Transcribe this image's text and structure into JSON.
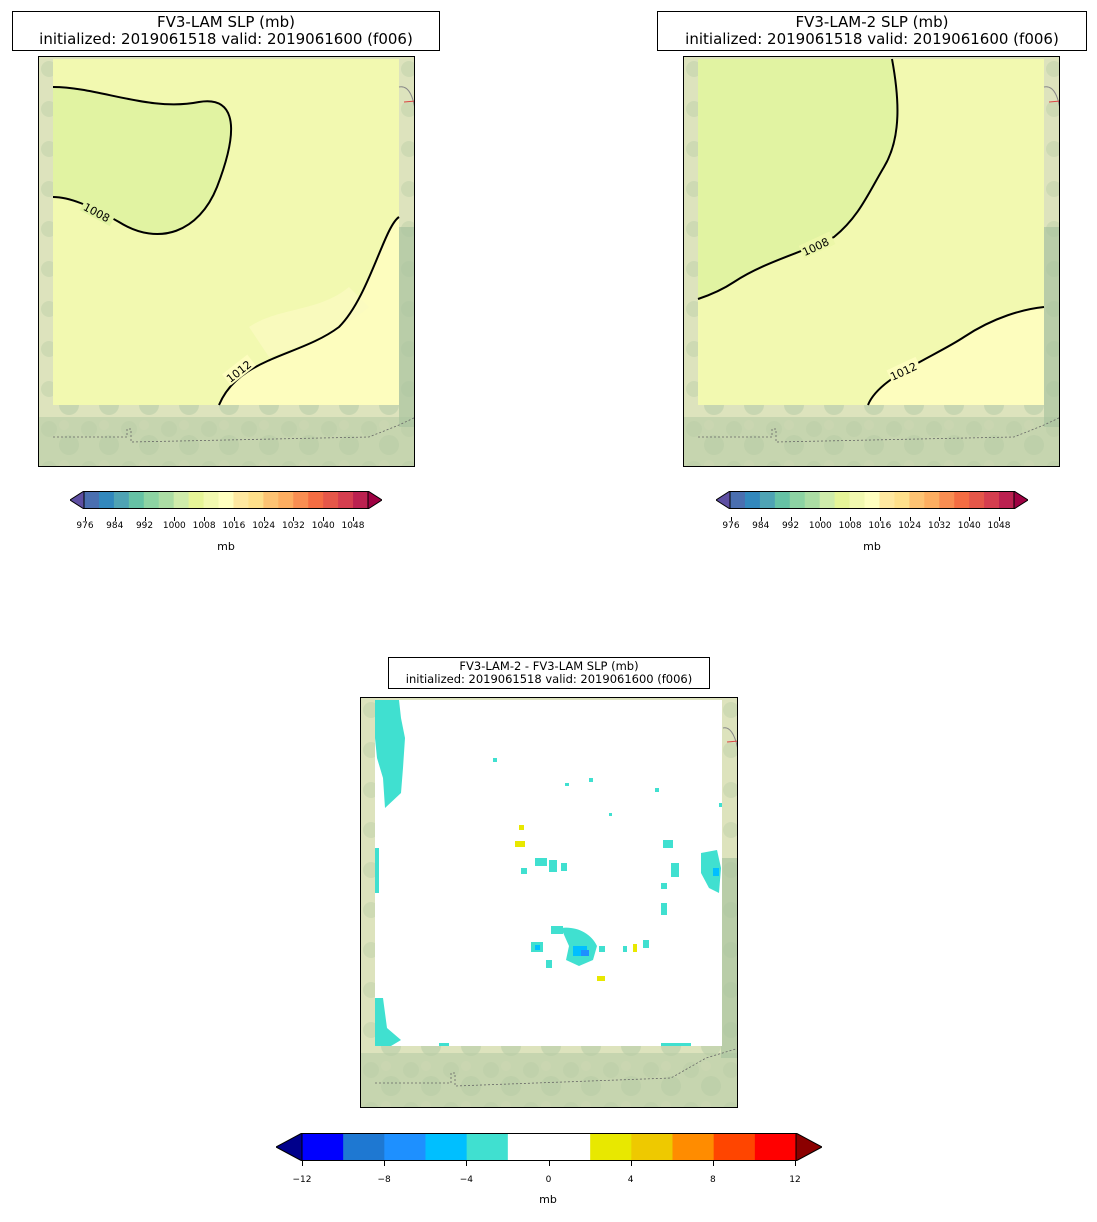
{
  "panels": {
    "top_left": {
      "title_line1": "FV3-LAM SLP (mb)",
      "title_line2": " initialized: 2019061518 valid: 2019061600 (f006)",
      "contour_labels": [
        "1008",
        "1012"
      ]
    },
    "top_right": {
      "title_line1": "FV3-LAM-2 SLP (mb)",
      "title_line2": " initialized: 2019061518 valid: 2019061600 (f006)",
      "contour_labels": [
        "1008",
        "1012"
      ]
    },
    "bottom": {
      "title_line1": "FV3-LAM-2 - FV3-LAM SLP (mb)",
      "title_line2": "initialized: 2019061518 valid: 2019061600 (f006)"
    }
  },
  "colorbar_slp": {
    "ticks": [
      "976",
      "984",
      "992",
      "1000",
      "1008",
      "1016",
      "1024",
      "1032",
      "1040",
      "1048"
    ],
    "units": "mb",
    "colors": [
      "#5e4fa2",
      "#4a6fb0",
      "#3288bd",
      "#4fa3b4",
      "#66c2a5",
      "#8dd3a3",
      "#abdda4",
      "#cfecab",
      "#e6f598",
      "#f2f9b0",
      "#ffffbf",
      "#fee8a0",
      "#fee08b",
      "#fdc373",
      "#fdae61",
      "#f98e52",
      "#f46d43",
      "#e55749",
      "#d53e4f",
      "#bb2150",
      "#9e0142"
    ]
  },
  "colorbar_diff": {
    "ticks": [
      "−12",
      "−8",
      "−4",
      "0",
      "4",
      "8",
      "12"
    ],
    "units": "mb",
    "colors": [
      "#0000ff",
      "#1e78d2",
      "#1e90ff",
      "#00bfff",
      "#40e0d0",
      "#ffffff",
      "#ffffff",
      "#e8e800",
      "#eec900",
      "#ff8c00",
      "#ff4500",
      "#ff0000"
    ],
    "under_color": "#00008b",
    "over_color": "#8b0000"
  }
}
